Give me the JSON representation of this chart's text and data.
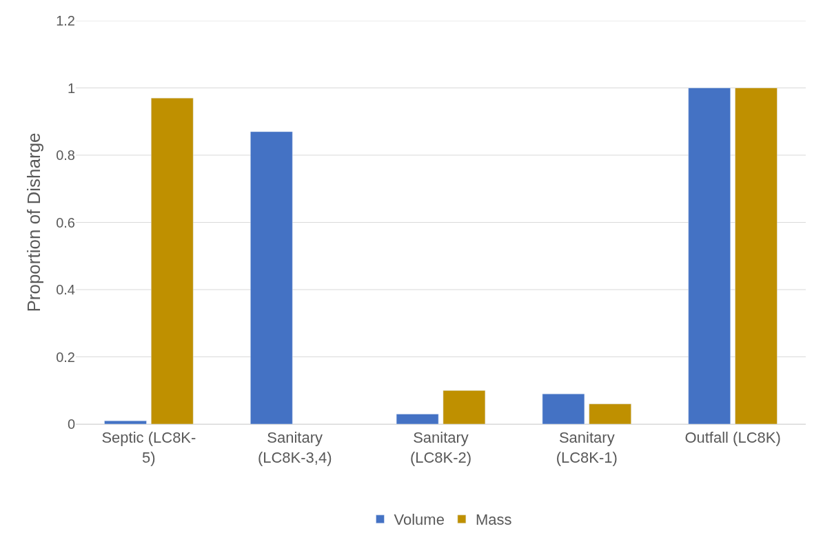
{
  "chart_data": {
    "type": "bar",
    "ylabel": "Proportion of Disharge",
    "categories": [
      "Septic (LC8K-5)",
      "Sanitary (LC8K-3,4)",
      "Sanitary (LC8K-2)",
      "Sanitary (LC8K-1)",
      "Outfall (LC8K)"
    ],
    "series": [
      {
        "name": "Volume",
        "color": "#4472c4",
        "values": [
          0.01,
          0.87,
          0.03,
          0.09,
          1.0
        ]
      },
      {
        "name": "Mass",
        "color": "#bf9000",
        "values": [
          0.97,
          null,
          0.1,
          0.06,
          1.0
        ]
      }
    ],
    "ylim": [
      0,
      1.2
    ],
    "yticks": [
      0,
      0.2,
      0.4,
      0.6,
      0.8,
      1,
      1.2
    ],
    "grid": "y",
    "legend": "bottom"
  }
}
